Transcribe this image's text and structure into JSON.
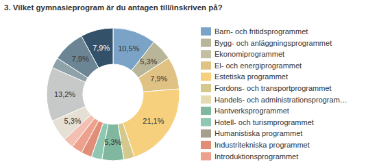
{
  "chart_data": {
    "type": "pie",
    "title": "3. Vilket gymnasieprogram är du antagen till/inskriven på?",
    "categories": [
      "Barn- och fritidsprogrammet",
      "Bygg- och anläggningsprogrammet",
      "Ekonomiprogrammet",
      "El- och energiprogrammet",
      "Estetiska programmet",
      "Fordons- och transportprogrammet",
      "Handels- och administrationsprogram…",
      "Hantverksprogrammet",
      "Hotell- och turismprogrammet",
      "Humanistiska programmet",
      "Industritekniska programmet",
      "Introduktionsprogrammet",
      null,
      null,
      null,
      null,
      null,
      null
    ],
    "values": [
      10.5,
      5.3,
      0,
      7.9,
      21.1,
      2.6,
      0,
      5.3,
      2.6,
      0,
      2.6,
      2.6,
      2.6,
      5.3,
      13.2,
      2.6,
      7.9,
      7.9
    ],
    "value_labels": [
      "10,5%",
      "5,3%",
      null,
      "7,9%",
      "21,1%",
      null,
      null,
      "5,3%",
      null,
      null,
      null,
      null,
      null,
      "5,3%",
      "13,2%",
      null,
      "7,9%",
      "7,9%"
    ],
    "colors": [
      "#7ba3c8",
      "#b9b598",
      "#c4bea2",
      "#e0c285",
      "#f6d07d",
      "#d4c88c",
      "#e6dbb0",
      "#7fb89e",
      "#8fc7b3",
      "#a69f8d",
      "#e08e78",
      "#eda08b",
      "#f3bfb1",
      "#e6e0d4",
      "#c6c9c7",
      "#8fa2aa",
      "#6b8595",
      "#34516a"
    ],
    "data_labels": true,
    "legend": "right",
    "annotations": [
      "• • •"
    ]
  }
}
